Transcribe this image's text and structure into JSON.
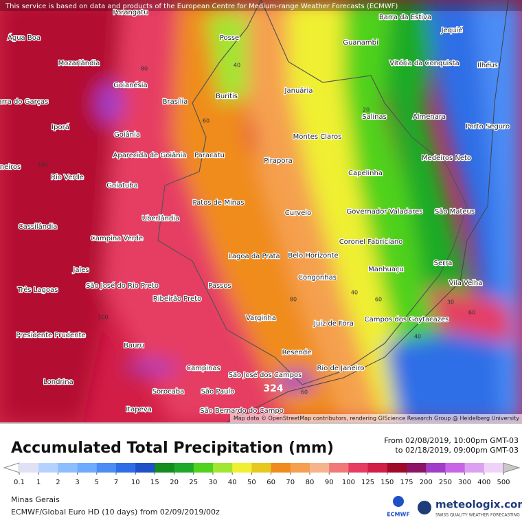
{
  "header": {
    "notice": "This service is based on data and products of the European Centre for Medium-range Weather Forecasts (ECMWF)",
    "attribution": "Map data © OpenStreetMap contributors, rendering GIScience Research Group @ Heidelberg University"
  },
  "map": {
    "cities": [
      "Porangatu",
      "Barra da Estiva",
      "Água Boa",
      "Mozarlândia",
      "Goianésia",
      "Barra do Garças",
      "Iporá",
      "Goiânia",
      "Aparecida de Goiânia",
      "Brasília",
      "Posse",
      "Buritis",
      "Paracatu",
      "Januária",
      "Guanambi",
      "Jequié",
      "Vitória da Conquista",
      "Ilhéus",
      "Salinas",
      "Almenara",
      "Porto Seguro",
      "Montes Claros",
      "Pirapora",
      "Medeiros Neto",
      "Capelinha",
      "Rio Verde",
      "Goiatuba",
      "Patos de Minas",
      "Curvelo",
      "Governador Valadares",
      "São Mateus",
      "Uberlândia",
      "Cassilândia",
      "Campina Verde",
      "Coronel Fabriciano",
      "Lagoa da Prata",
      "Belo Horizonte",
      "Serra",
      "Jales",
      "Congonhas",
      "Manhuaçu",
      "Vila Velha",
      "São José do Rio Preto",
      "Passos",
      "Três Lagoas",
      "Ribeirão Preto",
      "Varginha",
      "Juiz de Fora",
      "Campos dos Goytacazes",
      "Presidente Prudente",
      "Bauru",
      "Resende",
      "Campinas",
      "São José dos Campos",
      "Rio de Janeiro",
      "Londrina",
      "Sorocaba",
      "São Paulo",
      "Itapeva",
      "São Bernardo do Campo",
      "neiros"
    ],
    "contour_labels": [
      100,
      80,
      60,
      40,
      20,
      60,
      30,
      80,
      40,
      60,
      40,
      60,
      100,
      324
    ]
  },
  "legend": {
    "title": "Accumulated Total Precipitation (mm)",
    "period_from": "From 02/08/2019, 10:00pm GMT-03",
    "period_to": "to 02/18/2019, 09:00pm GMT-03",
    "ticks": [
      0.1,
      1,
      2,
      3,
      5,
      7,
      10,
      15,
      20,
      25,
      30,
      40,
      50,
      60,
      70,
      80,
      90,
      100,
      125,
      150,
      175,
      200,
      250,
      300,
      400,
      500
    ],
    "under_color": "#ffffff",
    "over_color": "#c8c8c8",
    "colors": [
      "#e1e1f5",
      "#b4d2ff",
      "#8cbeff",
      "#6eaaff",
      "#4b8cf5",
      "#2d6ee6",
      "#1e50c8",
      "#148c1e",
      "#1eaa28",
      "#50d21e",
      "#a0e632",
      "#f0f032",
      "#e6c81e",
      "#f08c1e",
      "#f5a050",
      "#f5b48c",
      "#f07878",
      "#e63c64",
      "#d21e46",
      "#a00a28",
      "#8c1464",
      "#a03cc8",
      "#c864e6",
      "#dca0f0",
      "#f0d2f8"
    ]
  },
  "footer": {
    "region": "Minas Gerais",
    "model": "ECMWF/Global Euro HD (10 days) from 02/09/2019/00z",
    "ecmwf": "ECMWF",
    "brand": "meteologix.com",
    "slogan": "SWISS QUALITY WEATHER FORECASTING"
  }
}
